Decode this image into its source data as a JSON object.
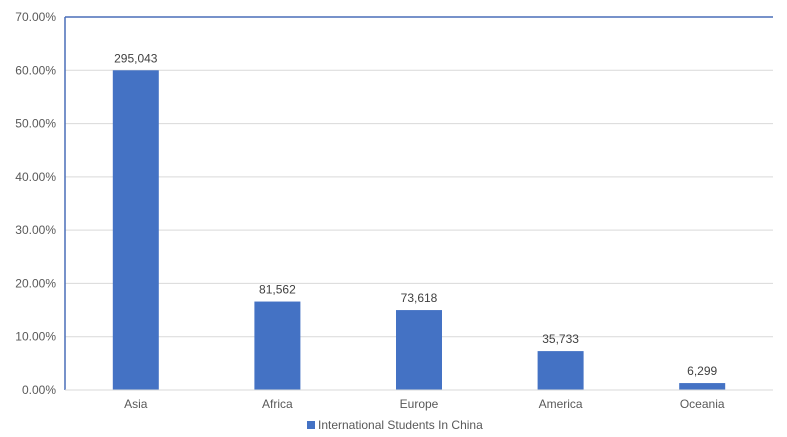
{
  "chart_data": {
    "type": "bar",
    "categories": [
      "Asia",
      "Africa",
      "Europe",
      "America",
      "Oceania"
    ],
    "series": [
      {
        "name": "International Students In China",
        "values": [
          0.6,
          0.166,
          0.15,
          0.073,
          0.013
        ],
        "data_labels": [
          "295,043",
          "81,562",
          "73,618",
          "35,733",
          "6,299"
        ]
      }
    ],
    "ylim": [
      0,
      0.7
    ],
    "yticks": [
      0,
      0.1,
      0.2,
      0.3,
      0.4,
      0.5,
      0.6,
      0.7
    ],
    "ytick_labels": [
      "0.00%",
      "10.00%",
      "20.00%",
      "30.00%",
      "40.00%",
      "50.00%",
      "60.00%",
      "70.00%"
    ],
    "grid": true,
    "legend_position": "bottom",
    "colors": {
      "bar": "#4472c4",
      "axis": "#4a6fb8",
      "grid": "#d9d9d9"
    }
  }
}
